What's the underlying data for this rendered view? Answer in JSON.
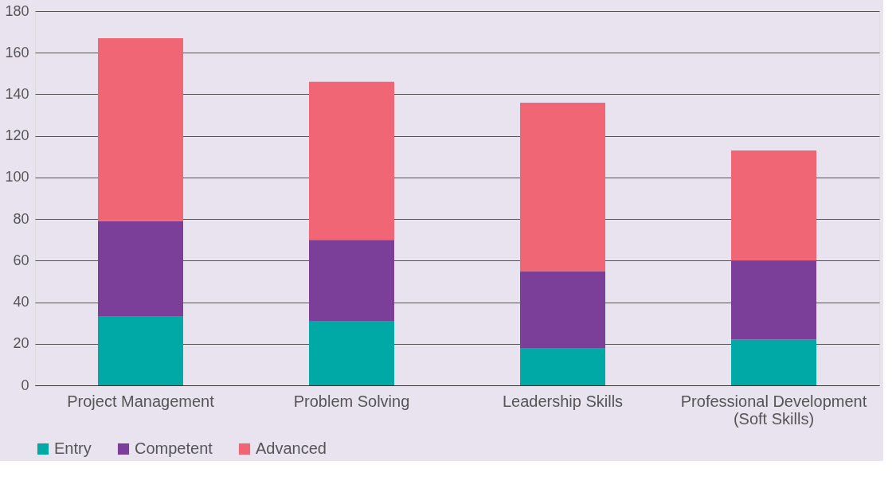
{
  "chart_data": {
    "type": "bar",
    "stacked": true,
    "categories": [
      "Project Management",
      "Problem Solving",
      "Leadership Skills",
      "Professional Development\n(Soft Skills)"
    ],
    "series": [
      {
        "name": "Entry",
        "color": "#00a9a5",
        "values": [
          33,
          31,
          18,
          22
        ]
      },
      {
        "name": "Competent",
        "color": "#7b3f99",
        "values": [
          46,
          39,
          37,
          38
        ]
      },
      {
        "name": "Advanced",
        "color": "#f06674",
        "values": [
          88,
          76,
          81,
          53
        ]
      }
    ],
    "ylim": [
      0,
      180
    ],
    "yticks": [
      0,
      20,
      40,
      60,
      80,
      100,
      120,
      140,
      160,
      180
    ],
    "grid": "y",
    "legend": "bottom"
  }
}
